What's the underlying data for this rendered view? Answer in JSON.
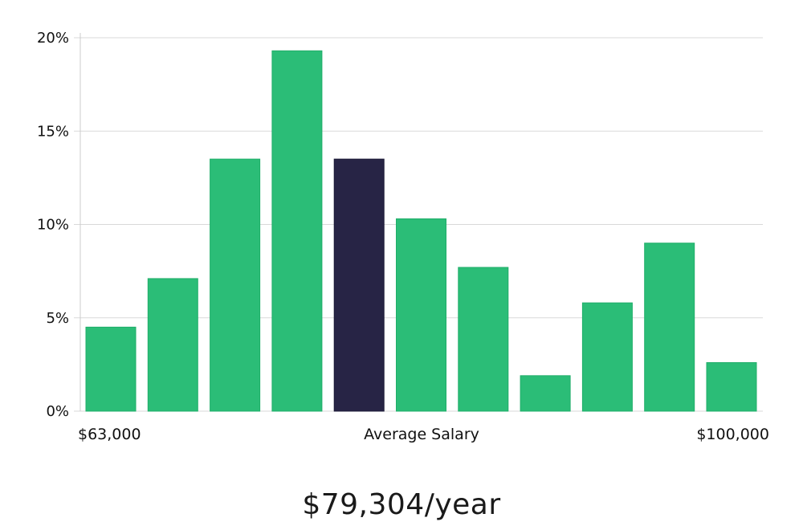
{
  "chart_data": {
    "type": "bar",
    "title": "",
    "xlabel": "Average Salary",
    "ylabel": "",
    "x_min_label": "$63,000",
    "x_max_label": "$100,000",
    "ylim": [
      0,
      20
    ],
    "yticks": [
      0,
      5,
      10,
      15,
      20
    ],
    "ytick_labels": [
      "0%",
      "5%",
      "10%",
      "15%",
      "20%"
    ],
    "grid": true,
    "values": [
      4.5,
      7.1,
      13.5,
      19.3,
      13.5,
      10.3,
      7.7,
      1.9,
      5.8,
      9.0,
      2.6
    ],
    "highlight_index": 4,
    "colors": {
      "bar": "#2bbd77",
      "bar_edge": "#1fae69",
      "highlight": "#272445",
      "grid": "#d9d9d9",
      "axis": "#cccccc"
    }
  },
  "summary": {
    "average_salary": "$79,304/year"
  }
}
